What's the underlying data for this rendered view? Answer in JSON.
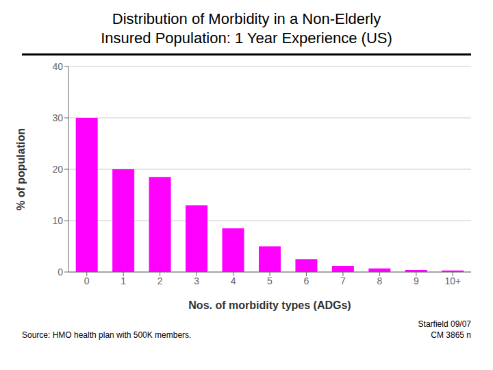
{
  "chart_data": {
    "type": "bar",
    "title": "Distribution of Morbidity in a Non-Elderly",
    "subtitle": "Insured Population: 1 Year Experience (US)",
    "categories": [
      "0",
      "1",
      "2",
      "3",
      "4",
      "5",
      "6",
      "7",
      "8",
      "9",
      "10+"
    ],
    "values": [
      30,
      20,
      18.5,
      13,
      8.5,
      5,
      2.5,
      1.2,
      0.7,
      0.4,
      0.3
    ],
    "color": "#FF00FF",
    "xlabel": "Nos. of morbidity types (ADGs)",
    "ylabel": "% of population",
    "ylim": [
      0,
      40
    ],
    "yticks": [
      0,
      10,
      20,
      30,
      40
    ],
    "grid": true,
    "annotations": [
      "Source: HMO health plan with 500K members.",
      "Starfield 09/07",
      "CM 3865 n"
    ]
  }
}
